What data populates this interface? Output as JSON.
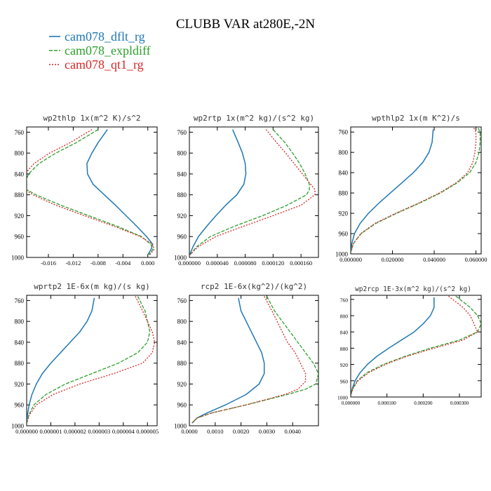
{
  "figure": {
    "title": "CLUBB VAR at280E,-2N"
  },
  "legend": [
    {
      "name": "cam078_dflt_rg",
      "color": "#1f77b4",
      "dash": "solid"
    },
    {
      "name": "cam078_expldiff",
      "color": "#2ca02c",
      "dash": "dashed"
    },
    {
      "name": "cam078_qt1_rg",
      "color": "#d62728",
      "dash": "dotted"
    }
  ],
  "chart_data": [
    {
      "type": "line",
      "title": "wp2thlp   1x(m^2 K)/s^2",
      "ylabel": "",
      "xlabel": "",
      "ylim": [
        1000,
        750
      ],
      "xlim": [
        -0.0195,
        0.0015
      ],
      "yticks": [
        "760",
        "800",
        "840",
        "880",
        "920",
        "960",
        "1000"
      ],
      "xticks": [
        "-0.016",
        "-0.012",
        "-0.008",
        "-0.004",
        "0.000"
      ],
      "xtick_values": [
        -0.016,
        -0.012,
        -0.008,
        -0.004,
        0.0
      ],
      "series": [
        {
          "y": [
            755,
            780,
            800,
            820,
            840,
            860,
            880,
            900,
            920,
            940,
            960,
            975,
            985,
            995
          ],
          "x": [
            -0.0065,
            -0.008,
            -0.009,
            -0.0098,
            -0.0097,
            -0.0088,
            -0.007,
            -0.0052,
            -0.0035,
            -0.0018,
            -0.0002,
            0.0008,
            0.0005,
            0.0
          ]
        },
        {
          "y": [
            755,
            780,
            800,
            820,
            840,
            860,
            870,
            880,
            900,
            920,
            940,
            960,
            975,
            985,
            995
          ],
          "x": [
            -0.008,
            -0.0115,
            -0.0148,
            -0.0175,
            -0.0192,
            -0.0198,
            -0.0195,
            -0.018,
            -0.014,
            -0.0095,
            -0.005,
            -0.001,
            0.0005,
            0.0008,
            0.0002
          ]
        },
        {
          "y": [
            755,
            780,
            800,
            820,
            840,
            860,
            870,
            880,
            900,
            920,
            940,
            960,
            975,
            985,
            995
          ],
          "x": [
            -0.009,
            -0.0125,
            -0.0158,
            -0.0183,
            -0.0198,
            -0.02,
            -0.0197,
            -0.0185,
            -0.0148,
            -0.0102,
            -0.0055,
            -0.0012,
            0.0008,
            0.001,
            0.0003
          ]
        }
      ]
    },
    {
      "type": "line",
      "title": "wp2rtp   1x(m^2 kg)/(s^2 kg)",
      "ylabel": "",
      "xlabel": "",
      "ylim": [
        1000,
        750
      ],
      "xlim": [
        0.0,
        0.000185
      ],
      "yticks": [
        "760",
        "800",
        "840",
        "880",
        "920",
        "960",
        "1000"
      ],
      "xticks": [
        "0.000000",
        "0.000040",
        "0.000080",
        "0.000120",
        "0.000160"
      ],
      "xtick_values": [
        0.0,
        4e-05,
        8e-05,
        0.00012,
        0.00016
      ],
      "series": [
        {
          "y": [
            755,
            780,
            800,
            820,
            840,
            860,
            880,
            900,
            920,
            940,
            960,
            980,
            995
          ],
          "x": [
            6.2e-05,
            7e-05,
            7.6e-05,
            8e-05,
            8.1e-05,
            7.8e-05,
            6.8e-05,
            5.2e-05,
            3.8e-05,
            2.5e-05,
            1.3e-05,
            5e-06,
            5e-07
          ]
        },
        {
          "y": [
            755,
            780,
            800,
            820,
            840,
            860,
            870,
            880,
            900,
            920,
            940,
            960,
            980,
            995
          ],
          "x": [
            0.00012,
            0.000137,
            0.000148,
            0.000158,
            0.000166,
            0.000172,
            0.000172,
            0.000168,
            0.00014,
            0.000105,
            6.5e-05,
            3e-05,
            1e-05,
            1e-06
          ]
        },
        {
          "y": [
            755,
            780,
            800,
            820,
            840,
            860,
            870,
            880,
            900,
            920,
            940,
            960,
            980,
            995
          ],
          "x": [
            0.00011,
            0.000125,
            0.000138,
            0.00015,
            0.000162,
            0.000174,
            0.00018,
            0.00018,
            0.00016,
            0.00012,
            7.8e-05,
            3.8e-05,
            1.2e-05,
            1e-06
          ]
        }
      ]
    },
    {
      "type": "line",
      "title": "wpthlp2   1x(m K^2)/s",
      "ylabel": "",
      "xlabel": "",
      "ylim": [
        1000,
        750
      ],
      "xlim": [
        0.0,
        0.0625
      ],
      "yticks": [
        "760",
        "800",
        "840",
        "880",
        "920",
        "960",
        "1000"
      ],
      "xticks": [
        "0.000000",
        "0.020000",
        "0.040000",
        "0.060000"
      ],
      "xtick_values": [
        0.0,
        0.02,
        0.04,
        0.06
      ],
      "series": [
        {
          "y": [
            755,
            780,
            800,
            820,
            840,
            860,
            880,
            900,
            920,
            940,
            960,
            980,
            995
          ],
          "x": [
            0.0395,
            0.039,
            0.0375,
            0.0345,
            0.03,
            0.0245,
            0.019,
            0.0135,
            0.0085,
            0.0045,
            0.0018,
            0.0005,
            0.0001
          ]
        },
        {
          "y": [
            752,
            760,
            780,
            800,
            820,
            840,
            860,
            880,
            900,
            920,
            940,
            960,
            980,
            995
          ],
          "x": [
            0.061,
            0.062,
            0.062,
            0.0615,
            0.06,
            0.057,
            0.051,
            0.043,
            0.033,
            0.022,
            0.012,
            0.005,
            0.0012,
            0.0002
          ]
        },
        {
          "y": [
            752,
            760,
            780,
            800,
            820,
            840,
            860,
            880,
            900,
            920,
            940,
            960,
            980,
            995
          ],
          "x": [
            0.059,
            0.06,
            0.06,
            0.0595,
            0.0585,
            0.056,
            0.0505,
            0.0425,
            0.0325,
            0.0215,
            0.0115,
            0.0048,
            0.0012,
            0.0002
          ]
        }
      ]
    },
    {
      "type": "line",
      "title": "wprtp2   1E-6x(m kg)/(s kg)",
      "ylabel": "",
      "xlabel": "",
      "ylim": [
        1000,
        750
      ],
      "xlim": [
        0.0,
        5.4e-06
      ],
      "yticks": [
        "760",
        "800",
        "840",
        "880",
        "920",
        "960",
        "1000"
      ],
      "xticks": [
        "0.000000",
        "0.000001",
        "0.000002",
        "0.000003",
        "0.000004",
        "0.000005"
      ],
      "xtick_values": [
        0.0,
        1e-06,
        2e-06,
        3e-06,
        4e-06,
        5e-06
      ],
      "series": [
        {
          "y": [
            755,
            780,
            800,
            820,
            840,
            860,
            880,
            900,
            920,
            940,
            960,
            980,
            995
          ],
          "x": [
            2.8e-06,
            2.7e-06,
            2.5e-06,
            2.2e-06,
            1.8e-06,
            1.4e-06,
            1e-06,
            6.5e-07,
            4e-07,
            2.2e-07,
            1e-07,
            3e-08,
            5e-09
          ]
        },
        {
          "y": [
            752,
            780,
            800,
            820,
            840,
            860,
            880,
            900,
            920,
            940,
            960,
            980,
            995
          ],
          "x": [
            4.6e-06,
            4.9e-06,
            5e-06,
            5.1e-06,
            5e-06,
            4.6e-06,
            3.8e-06,
            2.7e-06,
            1.6e-06,
            8e-07,
            3e-07,
            8e-08,
            1e-08
          ]
        },
        {
          "y": [
            752,
            780,
            800,
            820,
            840,
            860,
            880,
            900,
            920,
            940,
            960,
            980,
            995
          ],
          "x": [
            4.5e-06,
            4.8e-06,
            5e-06,
            5.2e-06,
            5.3e-06,
            5.2e-06,
            4.8e-06,
            3.6e-06,
            2.2e-06,
            1.1e-06,
            4e-07,
            1e-07,
            1e-08
          ]
        }
      ]
    },
    {
      "type": "line",
      "title": "rcp2   1E-6x(kg^2)/(kg^2)",
      "ylabel": "",
      "xlabel": "",
      "ylim": [
        1000,
        750
      ],
      "xlim": [
        0.0,
        0.005
      ],
      "yticks": [
        "760",
        "800",
        "840",
        "880",
        "920",
        "960",
        "1000"
      ],
      "xticks": [
        "0.0000",
        "0.0010",
        "0.0020",
        "0.0030",
        "0.0040"
      ],
      "xtick_values": [
        0.0,
        0.001,
        0.002,
        0.003,
        0.004
      ],
      "series": [
        {
          "y": [
            755,
            780,
            800,
            820,
            840,
            860,
            880,
            900,
            920,
            940,
            960,
            975,
            985,
            995
          ],
          "x": [
            0.0019,
            0.002,
            0.0022,
            0.0024,
            0.0026,
            0.0028,
            0.0029,
            0.0029,
            0.0027,
            0.0022,
            0.0014,
            0.0007,
            0.0003,
            0.0001
          ]
        },
        {
          "y": [
            752,
            780,
            800,
            820,
            840,
            860,
            880,
            900,
            920,
            930,
            940,
            960,
            975,
            985,
            995
          ],
          "x": [
            0.003,
            0.0033,
            0.0036,
            0.0039,
            0.0042,
            0.0045,
            0.0048,
            0.005,
            0.0049,
            0.0045,
            0.0038,
            0.0022,
            0.0009,
            0.0003,
            0.0001
          ]
        },
        {
          "y": [
            752,
            780,
            800,
            820,
            840,
            860,
            880,
            900,
            915,
            930,
            940,
            960,
            975,
            985,
            995
          ],
          "x": [
            0.0029,
            0.0032,
            0.0034,
            0.0036,
            0.0038,
            0.0041,
            0.0043,
            0.0045,
            0.0045,
            0.0042,
            0.0037,
            0.0022,
            0.0009,
            0.0003,
            0.0001
          ]
        }
      ]
    },
    {
      "type": "line",
      "title": "wp2rcp   1E-3x(m^2 kg)/(s^2 kg)",
      "ylabel": "",
      "xlabel": "",
      "ylim": [
        1000,
        750
      ],
      "xlim": [
        0.0,
        0.00036
      ],
      "yticks": [
        "760",
        "800",
        "840",
        "880",
        "920",
        "960",
        "1000"
      ],
      "xticks": [
        "0.000000",
        "0.000100",
        "0.000200",
        "0.000300"
      ],
      "xtick_values": [
        0.0,
        0.0001,
        0.0002,
        0.0003
      ],
      "series": [
        {
          "y": [
            755,
            780,
            800,
            820,
            840,
            860,
            880,
            900,
            920,
            940,
            960,
            980,
            995
          ],
          "x": [
            0.00023,
            0.00023,
            0.00022,
            0.0002,
            0.000175,
            0.00014,
            0.000105,
            7.2e-05,
            4.6e-05,
            2.6e-05,
            1.2e-05,
            4e-06,
            5e-07
          ]
        },
        {
          "y": [
            752,
            780,
            800,
            820,
            840,
            860,
            880,
            900,
            920,
            940,
            960,
            980,
            995
          ],
          "x": [
            0.00029,
            0.00033,
            0.00035,
            0.00036,
            0.00035,
            0.0003,
            0.00022,
            0.00015,
            9e-05,
            4.5e-05,
            1.8e-05,
            5e-06,
            5e-07
          ]
        },
        {
          "y": [
            752,
            780,
            800,
            820,
            840,
            860,
            880,
            900,
            920,
            940,
            960,
            980,
            995
          ],
          "x": [
            0.00027,
            0.00031,
            0.00033,
            0.00034,
            0.00035,
            0.00031,
            0.00023,
            0.000155,
            9.5e-05,
            5e-05,
            2e-05,
            6e-06,
            5e-07
          ]
        }
      ]
    }
  ]
}
